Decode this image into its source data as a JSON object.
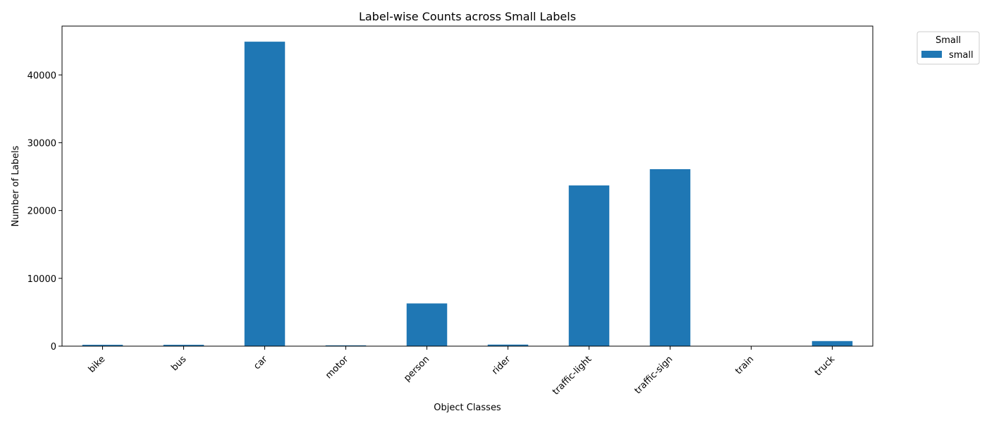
{
  "chart_data": {
    "type": "bar",
    "title": "Label-wise Counts across Small Labels",
    "xlabel": "Object Classes",
    "ylabel": "Number of Labels",
    "categories": [
      "bike",
      "bus",
      "car",
      "motor",
      "person",
      "rider",
      "traffic-light",
      "traffic-sign",
      "train",
      "truck"
    ],
    "series": [
      {
        "name": "small",
        "color": "#1f77b4",
        "values": [
          200,
          200,
          44900,
          120,
          6300,
          230,
          23700,
          26100,
          10,
          750
        ]
      }
    ],
    "ylim": [
      0,
      47200
    ],
    "yticks": [
      0,
      10000,
      20000,
      30000,
      40000
    ],
    "grid": false,
    "legend": {
      "title": "Small",
      "placement": "outside-top-right"
    }
  }
}
